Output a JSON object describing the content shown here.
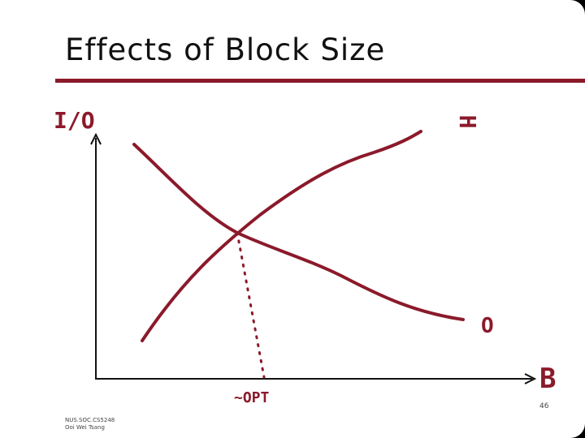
{
  "slide": {
    "title": "Effects of Block Size"
  },
  "diagram": {
    "y_axis_label": "I/O",
    "x_axis_label": "B",
    "curves": [
      {
        "label": "H"
      },
      {
        "label": "O"
      }
    ],
    "optimum_label": "~OPT"
  },
  "footer": {
    "page_number": "46",
    "course": "NUS.SOC.CS5248",
    "author": "Ooi Wei Tsang"
  }
}
